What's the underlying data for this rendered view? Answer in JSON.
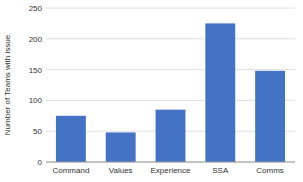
{
  "chart_data": {
    "type": "bar",
    "ylabel": "Number of Teams with issue",
    "categories": [
      "Command",
      "Values",
      "Experience",
      "SSA",
      "Comms"
    ],
    "values": [
      75,
      48,
      85,
      225,
      148
    ],
    "color": "#4472C4",
    "ylim": [
      0,
      250
    ],
    "yticks": [
      0,
      50,
      100,
      150,
      200,
      250
    ],
    "grid": true
  }
}
